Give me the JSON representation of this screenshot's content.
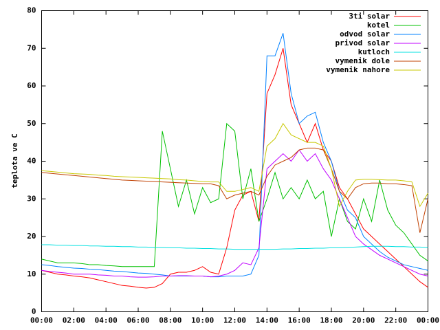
{
  "chart_data": {
    "type": "line",
    "y_label": "teplota ve C",
    "x": [
      0,
      0.5,
      1,
      1.5,
      2,
      2.5,
      3,
      3.5,
      4,
      4.5,
      5,
      5.5,
      6,
      6.5,
      7,
      7.5,
      8,
      8.5,
      9,
      9.5,
      10,
      10.5,
      11,
      11.5,
      12,
      12.5,
      13,
      13.5,
      14,
      14.5,
      15,
      15.5,
      16,
      16.5,
      17,
      17.5,
      18,
      18.5,
      19,
      19.5,
      20,
      20.5,
      21,
      21.5,
      22,
      22.5,
      23,
      23.5,
      24
    ],
    "xlim": [
      0,
      24
    ],
    "xticks": [
      {
        "value": 0,
        "label": "00:00"
      },
      {
        "value": 2,
        "label": "02:00"
      },
      {
        "value": 4,
        "label": "04:00"
      },
      {
        "value": 6,
        "label": "06:00"
      },
      {
        "value": 8,
        "label": "08:00"
      },
      {
        "value": 10,
        "label": "10:00"
      },
      {
        "value": 12,
        "label": "12:00"
      },
      {
        "value": 14,
        "label": "14:00"
      },
      {
        "value": 16,
        "label": "16:00"
      },
      {
        "value": 18,
        "label": "18:00"
      },
      {
        "value": 20,
        "label": "20:00"
      },
      {
        "value": 22,
        "label": "22:00"
      },
      {
        "value": 24,
        "label": "00:00"
      }
    ],
    "ylim": [
      0,
      80
    ],
    "yticks": [
      0,
      10,
      20,
      30,
      40,
      50,
      60,
      70,
      80
    ],
    "legend": "top-right",
    "series": [
      {
        "name": "3ti solar",
        "color": "#ff0000",
        "values": [
          11,
          10.5,
          10,
          9.8,
          9.5,
          9.3,
          9,
          8.5,
          8,
          7.5,
          7,
          6.8,
          6.5,
          6.3,
          6.5,
          7.5,
          10,
          10.5,
          10.5,
          11,
          12,
          10.5,
          10,
          17,
          27,
          31,
          32,
          24,
          58,
          63,
          70,
          55,
          50,
          45,
          50,
          43,
          40,
          33,
          30,
          26,
          22,
          20,
          18,
          16,
          14,
          12,
          10,
          8,
          6.5
        ]
      },
      {
        "name": "kotel",
        "color": "#00c000",
        "values": [
          14,
          13.5,
          13,
          13,
          13,
          12.8,
          12.5,
          12.5,
          12.3,
          12.2,
          12,
          12,
          12,
          12,
          12,
          48,
          38,
          28,
          35,
          26,
          33,
          29,
          30,
          50,
          48,
          30,
          38,
          24,
          30,
          37,
          30,
          33,
          30,
          35,
          30,
          32,
          20,
          30,
          24,
          22,
          30,
          24,
          35,
          27,
          23,
          21,
          18,
          15,
          13.5
        ]
      },
      {
        "name": "odvod solar",
        "color": "#0080ff",
        "values": [
          12.5,
          12.3,
          12,
          11.8,
          11.6,
          11.5,
          11.3,
          11.2,
          11,
          10.8,
          10.7,
          10.5,
          10.3,
          10.2,
          10,
          9.8,
          9.5,
          9.5,
          9.5,
          9.5,
          9.5,
          9.3,
          9.3,
          9.5,
          9.5,
          9.5,
          10,
          15,
          68,
          68,
          74,
          58,
          50,
          52,
          53,
          45,
          40,
          32,
          27,
          25,
          20,
          18,
          16,
          14.5,
          13.5,
          12.5,
          12,
          11.5,
          11
        ]
      },
      {
        "name": "privod solar",
        "color": "#c000ff",
        "values": [
          11,
          10.7,
          10.5,
          10.3,
          10,
          10,
          10,
          9.8,
          9.7,
          9.5,
          9.5,
          9.3,
          9.2,
          9.2,
          9.3,
          9.5,
          9.5,
          9.6,
          9.6,
          9.5,
          9.5,
          9.3,
          9.5,
          10,
          11,
          13,
          12.5,
          17,
          38,
          40,
          42,
          40,
          43,
          40,
          42,
          38,
          35,
          30,
          25,
          20,
          18,
          16.5,
          15,
          14,
          13,
          12,
          11,
          10,
          9.5
        ]
      },
      {
        "name": "kutloch",
        "color": "#00e0e0",
        "values": [
          17.8,
          17.8,
          17.7,
          17.7,
          17.6,
          17.6,
          17.5,
          17.5,
          17.4,
          17.4,
          17.3,
          17.3,
          17.2,
          17.2,
          17.1,
          17.1,
          17.0,
          17.0,
          16.9,
          16.9,
          16.8,
          16.8,
          16.7,
          16.7,
          16.6,
          16.6,
          16.6,
          16.6,
          16.6,
          16.6,
          16.7,
          16.7,
          16.8,
          16.8,
          16.9,
          16.9,
          17.0,
          17.0,
          17.1,
          17.2,
          17.3,
          17.4,
          17.4,
          17.4,
          17.3,
          17.3,
          17.2,
          17.2,
          17.1
        ]
      },
      {
        "name": "vymenik dole",
        "color": "#c04000",
        "values": [
          37,
          36.8,
          36.6,
          36.4,
          36.2,
          36,
          35.8,
          35.6,
          35.4,
          35.2,
          35,
          34.9,
          34.8,
          34.7,
          34.6,
          34.5,
          34.4,
          34.3,
          34.2,
          34.1,
          34,
          34,
          33.5,
          30,
          31,
          31.5,
          32,
          31,
          36,
          39,
          40,
          41,
          43,
          43.5,
          43.5,
          43,
          38,
          32,
          30,
          33,
          34,
          34.2,
          34.2,
          34,
          34,
          33.8,
          33.5,
          21,
          30
        ]
      },
      {
        "name": "vymenik nahore",
        "color": "#c8c800",
        "values": [
          37.5,
          37.3,
          37.1,
          36.9,
          36.7,
          36.6,
          36.5,
          36.3,
          36.2,
          36,
          35.9,
          35.8,
          35.7,
          35.6,
          35.5,
          35.4,
          35.3,
          35.1,
          35,
          34.8,
          34.6,
          34.5,
          34.5,
          32,
          32,
          32.5,
          33,
          32,
          44,
          46,
          50,
          47,
          46,
          45,
          45,
          44,
          38,
          28,
          32,
          35,
          35.2,
          35.2,
          35.1,
          35,
          35,
          34.8,
          34.5,
          28,
          31.5
        ]
      }
    ]
  }
}
